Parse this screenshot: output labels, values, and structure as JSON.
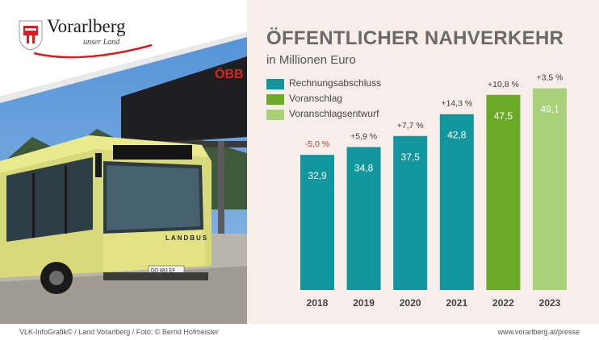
{
  "logo": {
    "wordmark": "Vorarlberg",
    "tagline": "unser Land"
  },
  "photo": {
    "station_sign": "ÖBB",
    "bus_side_text": "LANDBUS",
    "plate": "DO 483 EF"
  },
  "colors": {
    "panel_bg": "#f7eeea",
    "rechnungsabschluss": "#12969e",
    "voranschlag": "#6aaa28",
    "voranschlagsentwurf": "#a9d17a",
    "negative_change": "#c0392b",
    "positive_change": "#3d3d3d"
  },
  "chart_data": {
    "type": "bar",
    "title": "ÖFFENTLICHER NAHVERKEHR",
    "subtitle": "in Millionen Euro",
    "categories": [
      "2018",
      "2019",
      "2020",
      "2021",
      "2022",
      "2023"
    ],
    "values": [
      32.9,
      34.8,
      37.5,
      42.8,
      47.5,
      49.1
    ],
    "value_labels": [
      "32,9",
      "34,8",
      "37,5",
      "42,8",
      "47,5",
      "49,1"
    ],
    "change_labels": [
      "-5,0 %",
      "+5,9 %",
      "+7,7 %",
      "+14,3 %",
      "+10,8 %",
      "+3,5 %"
    ],
    "bar_series": [
      "Rechnungsabschluss",
      "Rechnungsabschluss",
      "Rechnungsabschluss",
      "Rechnungsabschluss",
      "Voranschlag",
      "Voranschlagsentwurf"
    ],
    "legend": [
      "Rechnungsabschluss",
      "Voranschlag",
      "Voranschlagsentwurf"
    ],
    "legend_placement": "top-left",
    "baseline": 0,
    "grid": false
  },
  "footer": {
    "credits": "VLK-InfoGrafik©   /   Land Vorarlberg   /   Foto: © Bernd Hofmeister",
    "url": "www.vorarlberg.at/presse"
  }
}
